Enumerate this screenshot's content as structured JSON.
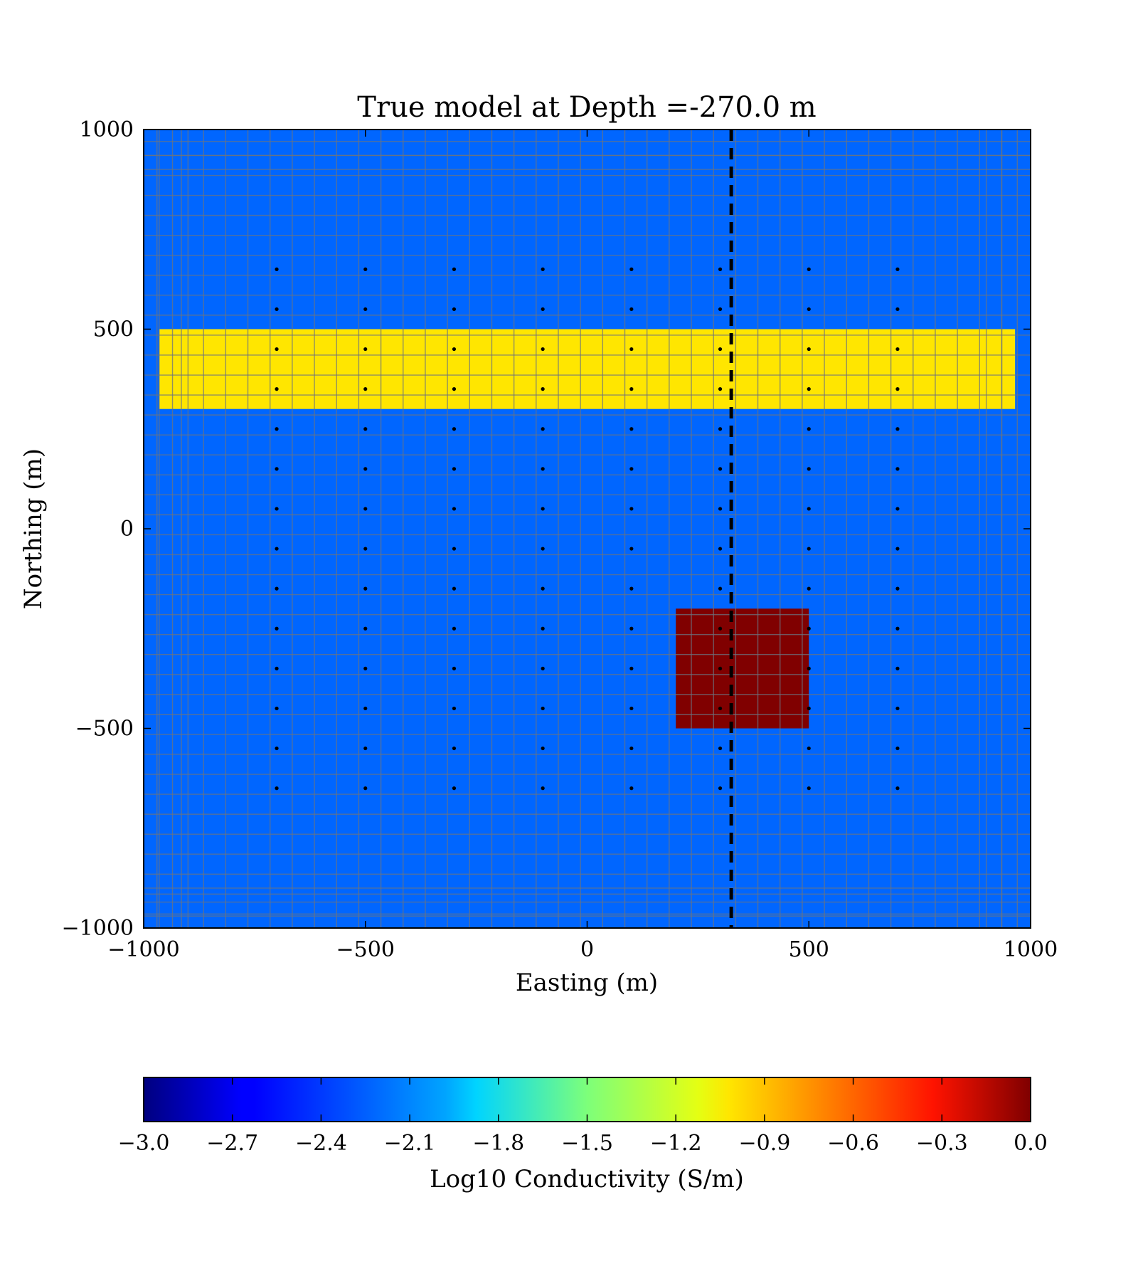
{
  "chart_data": {
    "type": "heatmap",
    "title": "True model at Depth =-270.0 m",
    "xlabel": "Easting (m)",
    "ylabel": "Northing (m)",
    "xlim": [
      -1000,
      1000
    ],
    "ylim": [
      -1000,
      1000
    ],
    "x_ticks": [
      -1000,
      -500,
      0,
      500,
      1000
    ],
    "y_ticks": [
      -1000,
      -500,
      0,
      500,
      1000
    ],
    "x_tick_labels": [
      "−1000",
      "−500",
      "0",
      "500",
      "1000"
    ],
    "y_tick_labels": [
      "−1000",
      "−500",
      "0",
      "500",
      "1000"
    ],
    "background_value": -2.3,
    "background_color": "#0066ff",
    "grid": true,
    "grid_color": "#6b7480",
    "mesh_core_extent": [
      -970,
      970
    ],
    "mesh_core_cell_size": 50,
    "mesh_padding_lines": [
      -1000,
      -970,
      -935,
      -900,
      900,
      935,
      970,
      1000
    ],
    "anomalies": [
      {
        "name": "conductive-block",
        "x": [
          200,
          500
        ],
        "y": [
          -500,
          -200
        ],
        "value": 0.0,
        "color": "#800000"
      },
      {
        "name": "resistive-layer",
        "x": [
          -965,
          965
        ],
        "y": [
          300,
          500
        ],
        "value": -1.0,
        "color": "#ffe600"
      }
    ],
    "receivers": {
      "x": [
        -700,
        -500,
        -300,
        -100,
        100,
        300,
        500,
        700
      ],
      "y": [
        650,
        550,
        450,
        350,
        250,
        150,
        50,
        -50,
        -150,
        -250,
        -350,
        -450,
        -550,
        -650
      ],
      "color": "#000000"
    },
    "section_line": {
      "x": 325,
      "style": "dashed",
      "color": "#000000"
    },
    "colorbar": {
      "label": "Log10 Conductivity (S/m)",
      "min": -3.0,
      "max": 0.0,
      "colormap": "jet",
      "tick_values": [
        -3.0,
        -2.7,
        -2.4,
        -2.1,
        -1.8,
        -1.5,
        -1.2,
        -0.9,
        -0.6,
        -0.3,
        0.0
      ],
      "tick_labels": [
        "−3.0",
        "−2.7",
        "−2.4",
        "−2.1",
        "−1.8",
        "−1.5",
        "−1.2",
        "−0.9",
        "−0.6",
        "−0.3",
        "0.0"
      ]
    }
  }
}
